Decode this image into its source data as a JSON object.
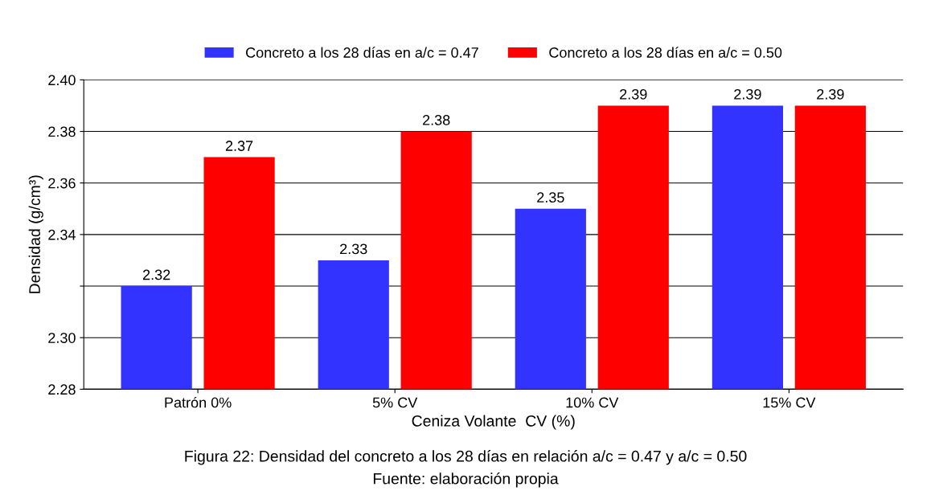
{
  "chart_data": {
    "type": "bar",
    "xlabel": "Ceniza Volante  CV (%)",
    "ylabel": "Densidad (g/cm³)",
    "categories": [
      "Patrón 0%",
      "5% CV",
      "10% CV",
      "15% CV"
    ],
    "series": [
      {
        "name": "Concreto a los 28 días en a/c = 0.47",
        "color": "#3333ff",
        "values": [
          2.32,
          2.33,
          2.35,
          2.39
        ]
      },
      {
        "name": "Concreto a los 28 días en a/c = 0.50",
        "color": "#ff0000",
        "values": [
          2.37,
          2.38,
          2.39,
          2.39
        ]
      }
    ],
    "ylim": [
      2.28,
      2.4
    ],
    "yticks": [
      2.28,
      {
        "value": 2.3,
        "label": "2.30"
      },
      {
        "value": 2.32,
        "label": null
      },
      2.34,
      2.36,
      2.38,
      {
        "value": 2.4,
        "label": "2.40"
      }
    ],
    "data_labels": true,
    "grid": "y",
    "legend": "top",
    "annotations": [
      "Figura 22: Densidad del concreto a los 28 días en relación a/c = 0.47 y a/c = 0.50",
      "Fuente: elaboración propia"
    ]
  }
}
